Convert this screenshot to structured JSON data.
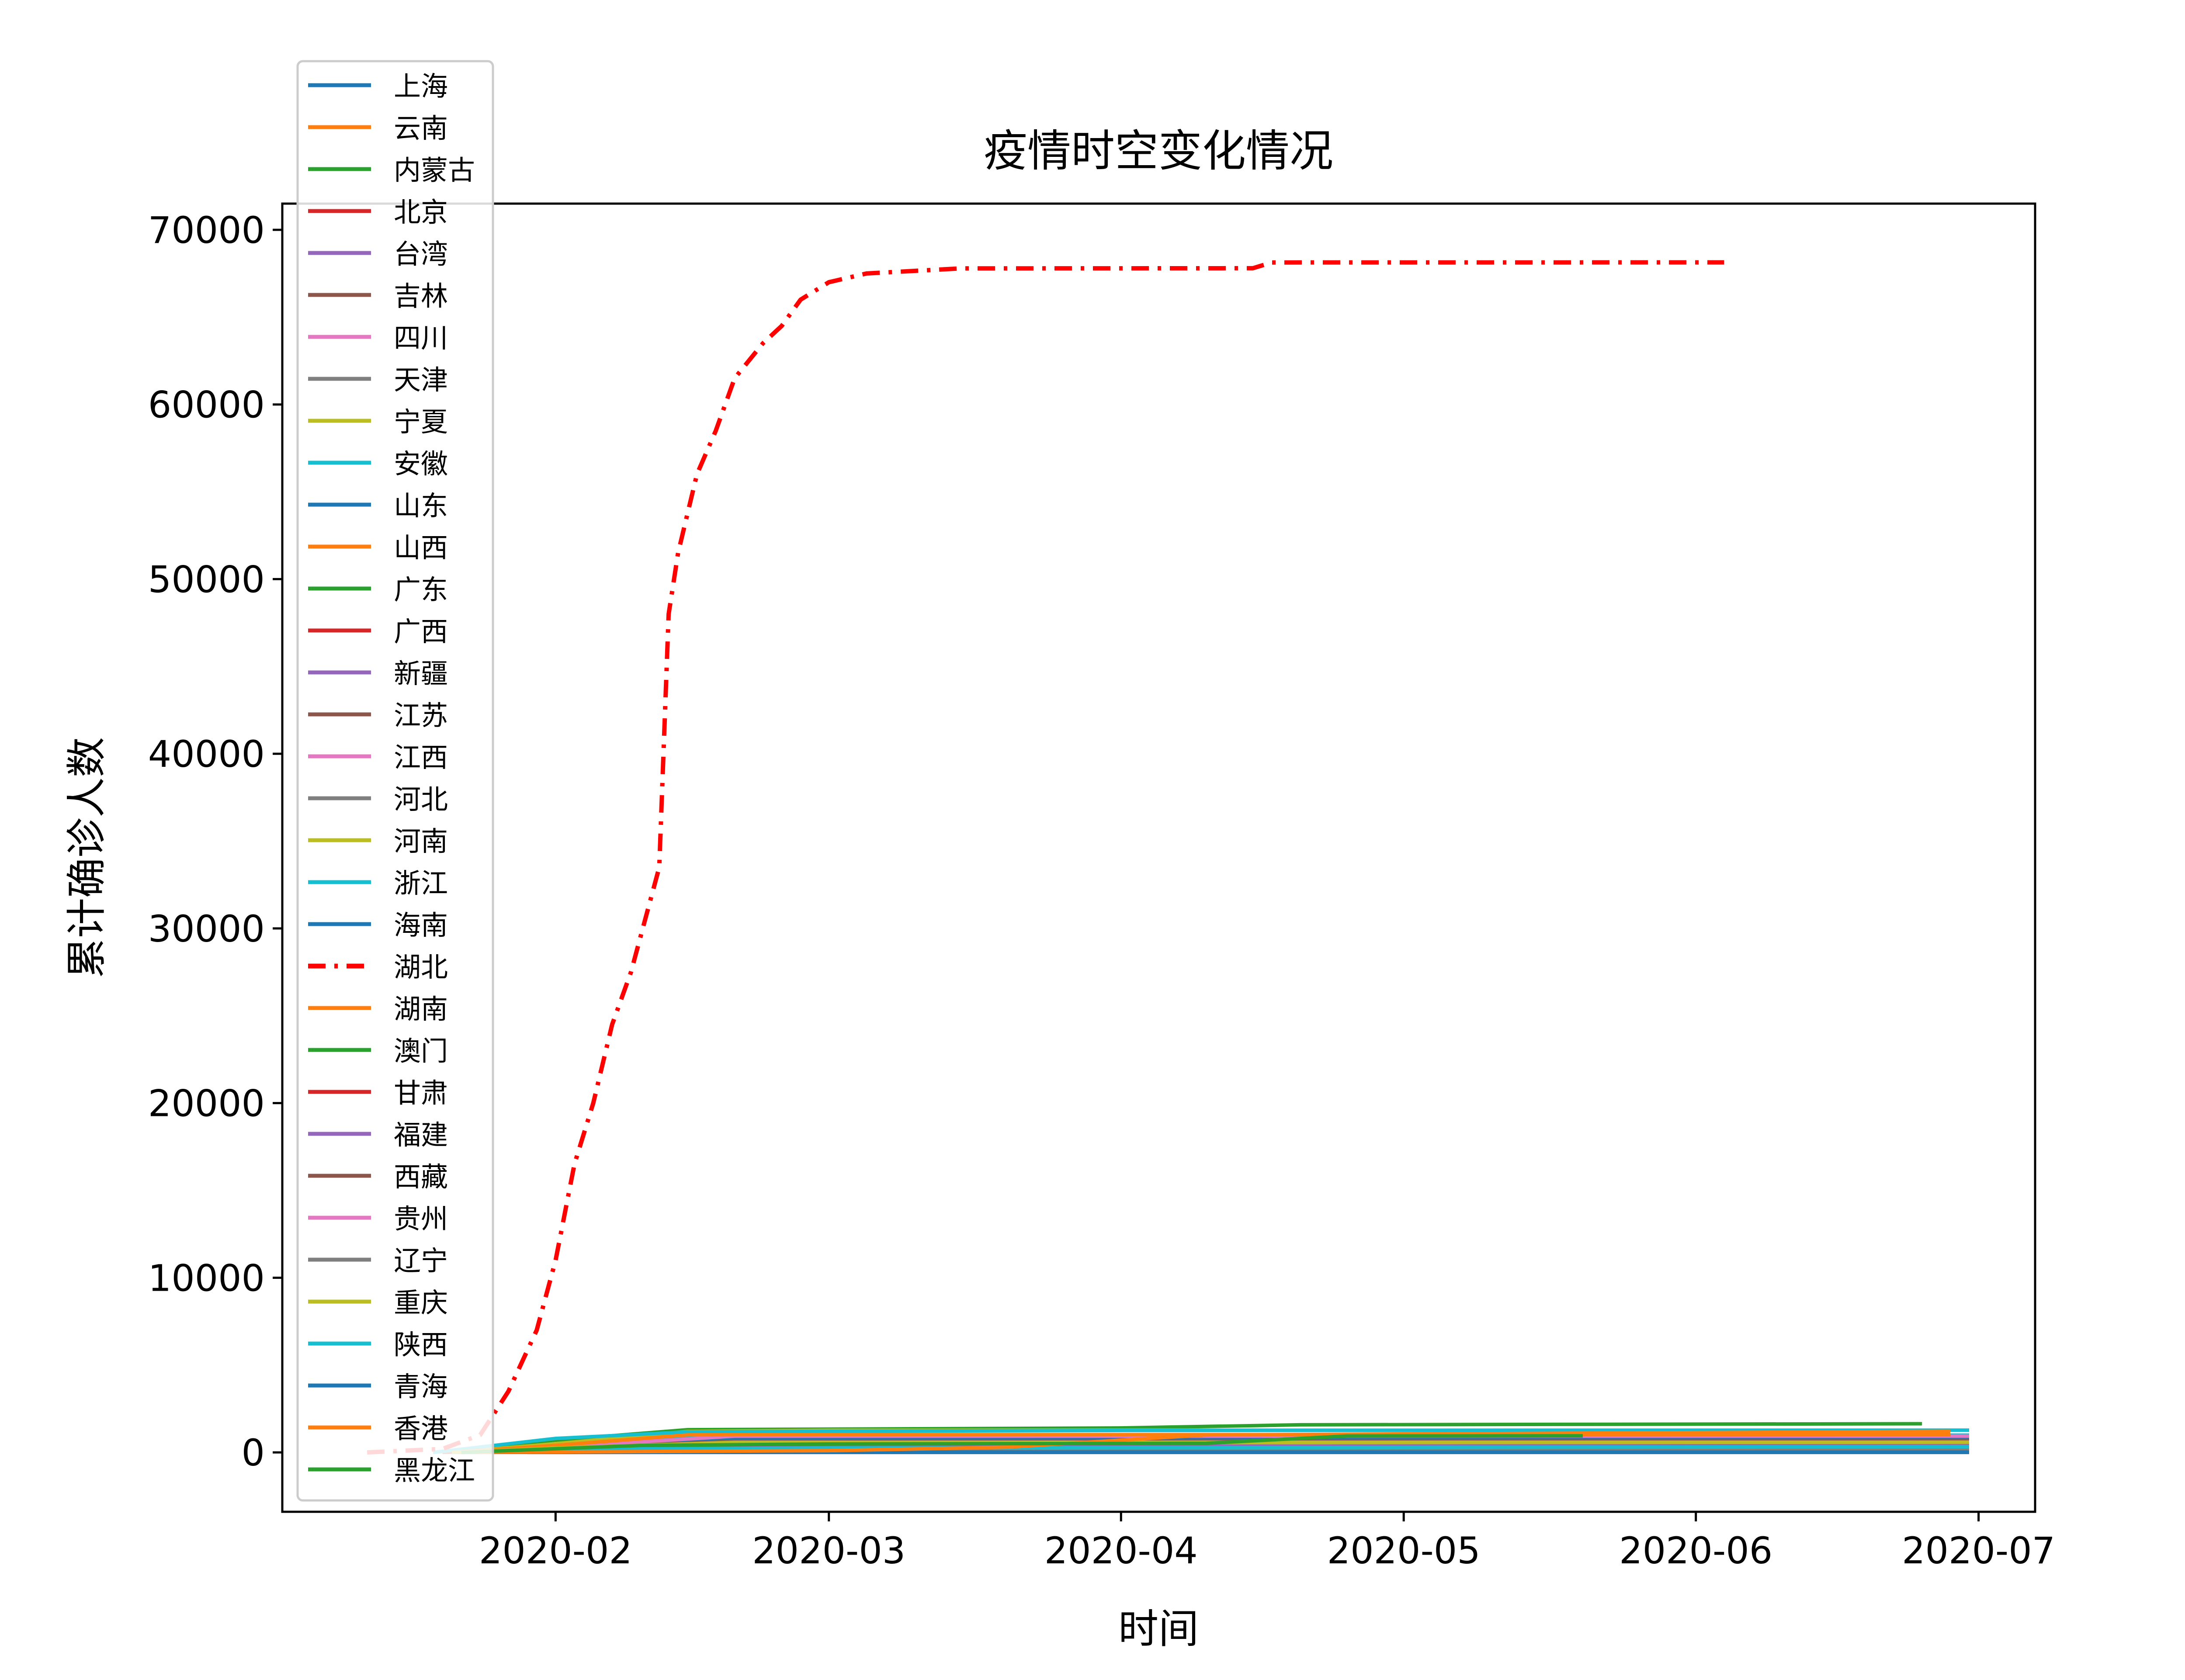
{
  "chart_data": {
    "type": "line",
    "title": "疫情时空变化情况",
    "xlabel": "时间",
    "ylabel": "累计确诊人数",
    "xlim": [
      "2020-01-03",
      "2020-07-07"
    ],
    "ylim": [
      -3400,
      71500
    ],
    "x_ticks": [
      "2020-02-01",
      "2020-03-01",
      "2020-04-01",
      "2020-05-01",
      "2020-06-01",
      "2020-07-01"
    ],
    "x_tick_labels": [
      "2020-02",
      "2020-03",
      "2020-04",
      "2020-05",
      "2020-06",
      "2020-07"
    ],
    "y_ticks": [
      0,
      10000,
      20000,
      30000,
      40000,
      50000,
      60000,
      70000
    ],
    "y_tick_labels": [
      "0",
      "10000",
      "20000",
      "30000",
      "40000",
      "50000",
      "60000",
      "70000"
    ],
    "grid": false,
    "legend_position": "top-left",
    "series": [
      {
        "name": "上海",
        "color": "#1f77b4",
        "style": "solid",
        "x": [
          "2020-01-20",
          "2020-02-01",
          "2020-02-15",
          "2020-04-01",
          "2020-04-20",
          "2020-06-30"
        ],
        "y": [
          0,
          160,
          330,
          450,
          630,
          700
        ]
      },
      {
        "name": "云南",
        "color": "#ff7f0e",
        "style": "solid",
        "x": [
          "2020-01-20",
          "2020-02-01",
          "2020-02-20",
          "2020-06-30"
        ],
        "y": [
          0,
          100,
          174,
          185
        ]
      },
      {
        "name": "内蒙古",
        "color": "#2ca02c",
        "style": "solid",
        "x": [
          "2020-01-22",
          "2020-02-01",
          "2020-03-01",
          "2020-04-15",
          "2020-06-30"
        ],
        "y": [
          0,
          30,
          75,
          200,
          240
        ]
      },
      {
        "name": "北京",
        "color": "#d62728",
        "style": "solid",
        "x": [
          "2020-01-20",
          "2020-02-01",
          "2020-02-20",
          "2020-04-01",
          "2020-06-10",
          "2020-06-20",
          "2020-06-30"
        ],
        "y": [
          0,
          190,
          400,
          580,
          600,
          850,
          930
        ]
      },
      {
        "name": "台湾",
        "color": "#9467bd",
        "style": "solid",
        "x": [
          "2020-01-21",
          "2020-03-15",
          "2020-04-15",
          "2020-06-30"
        ],
        "y": [
          0,
          60,
          400,
          447
        ]
      },
      {
        "name": "吉林",
        "color": "#8c564b",
        "style": "solid",
        "x": [
          "2020-01-22",
          "2020-02-10",
          "2020-05-10",
          "2020-05-20",
          "2020-06-30"
        ],
        "y": [
          0,
          90,
          110,
          150,
          155
        ]
      },
      {
        "name": "四川",
        "color": "#e377c2",
        "style": "solid",
        "x": [
          "2020-01-21",
          "2020-02-01",
          "2020-02-20",
          "2020-06-30"
        ],
        "y": [
          0,
          230,
          530,
          590
        ]
      },
      {
        "name": "天津",
        "color": "#7f7f7f",
        "style": "solid",
        "x": [
          "2020-01-21",
          "2020-02-10",
          "2020-03-01",
          "2020-06-30"
        ],
        "y": [
          0,
          90,
          136,
          198
        ]
      },
      {
        "name": "宁夏",
        "color": "#bcbd22",
        "style": "solid",
        "x": [
          "2020-01-22",
          "2020-02-15",
          "2020-06-30"
        ],
        "y": [
          0,
          71,
          75
        ]
      },
      {
        "name": "安徽",
        "color": "#17becf",
        "style": "solid",
        "x": [
          "2020-01-22",
          "2020-02-01",
          "2020-02-15",
          "2020-03-01",
          "2020-06-30"
        ],
        "y": [
          0,
          400,
          950,
          990,
          991
        ]
      },
      {
        "name": "山东",
        "color": "#1f77b4",
        "style": "solid",
        "x": [
          "2020-01-21",
          "2020-02-01",
          "2020-02-20",
          "2020-06-30"
        ],
        "y": [
          0,
          230,
          750,
          792
        ]
      },
      {
        "name": "山西",
        "color": "#ff7f0e",
        "style": "solid",
        "x": [
          "2020-01-22",
          "2020-02-10",
          "2020-06-30"
        ],
        "y": [
          0,
          120,
          198
        ]
      },
      {
        "name": "广东",
        "color": "#2ca02c",
        "style": "solid",
        "x": [
          "2020-01-19",
          "2020-02-01",
          "2020-02-15",
          "2020-04-01",
          "2020-04-20",
          "2020-06-25"
        ],
        "y": [
          0,
          700,
          1300,
          1400,
          1580,
          1640
        ]
      },
      {
        "name": "广西",
        "color": "#d62728",
        "style": "solid",
        "x": [
          "2020-01-22",
          "2020-02-10",
          "2020-03-01",
          "2020-06-30"
        ],
        "y": [
          0,
          200,
          252,
          254
        ]
      },
      {
        "name": "新疆",
        "color": "#9467bd",
        "style": "solid",
        "x": [
          "2020-01-23",
          "2020-02-10",
          "2020-03-01",
          "2020-06-30"
        ],
        "y": [
          0,
          50,
          76,
          76
        ]
      },
      {
        "name": "江苏",
        "color": "#8c564b",
        "style": "solid",
        "x": [
          "2020-01-22",
          "2020-02-01",
          "2020-02-20",
          "2020-06-30"
        ],
        "y": [
          0,
          250,
          631,
          653
        ]
      },
      {
        "name": "江西",
        "color": "#e377c2",
        "style": "solid",
        "x": [
          "2020-01-21",
          "2020-02-01",
          "2020-02-20",
          "2020-06-30"
        ],
        "y": [
          0,
          300,
          934,
          935
        ]
      },
      {
        "name": "河北",
        "color": "#7f7f7f",
        "style": "solid",
        "x": [
          "2020-01-22",
          "2020-02-15",
          "2020-03-01",
          "2020-06-30"
        ],
        "y": [
          0,
          250,
          318,
          349
        ]
      },
      {
        "name": "河南",
        "color": "#bcbd22",
        "style": "solid",
        "x": [
          "2020-01-21",
          "2020-02-01",
          "2020-02-15",
          "2020-03-01",
          "2020-06-30"
        ],
        "y": [
          0,
          500,
          1200,
          1272,
          1276
        ]
      },
      {
        "name": "浙江",
        "color": "#17becf",
        "style": "solid",
        "x": [
          "2020-01-19",
          "2020-02-01",
          "2020-02-15",
          "2020-03-01",
          "2020-04-01",
          "2020-06-30"
        ],
        "y": [
          0,
          800,
          1170,
          1205,
          1255,
          1268
        ]
      },
      {
        "name": "海南",
        "color": "#1f77b4",
        "style": "solid",
        "x": [
          "2020-01-22",
          "2020-02-10",
          "2020-03-01",
          "2020-06-30"
        ],
        "y": [
          0,
          140,
          168,
          171
        ]
      },
      {
        "name": "湖北",
        "color": "#ff0000",
        "style": "dashdot",
        "x": [
          "2020-01-12",
          "2020-01-20",
          "2020-01-24",
          "2020-01-27",
          "2020-01-30",
          "2020-02-01",
          "2020-02-03",
          "2020-02-05",
          "2020-02-07",
          "2020-02-09",
          "2020-02-11",
          "2020-02-12",
          "2020-02-13",
          "2020-02-14",
          "2020-02-16",
          "2020-02-18",
          "2020-02-20",
          "2020-02-23",
          "2020-02-25",
          "2020-02-27",
          "2020-03-01",
          "2020-03-05",
          "2020-03-15",
          "2020-04-15",
          "2020-04-17",
          "2020-06-04"
        ],
        "y": [
          0,
          200,
          1000,
          3500,
          7000,
          11000,
          16500,
          20000,
          24500,
          27500,
          31500,
          33500,
          48000,
          51500,
          56000,
          58500,
          61500,
          63500,
          64500,
          66000,
          67000,
          67500,
          67790,
          67800,
          68130,
          68135
        ]
      },
      {
        "name": "湖南",
        "color": "#ff7f0e",
        "style": "solid",
        "x": [
          "2020-01-21",
          "2020-02-01",
          "2020-02-15",
          "2020-03-01",
          "2020-06-28"
        ],
        "y": [
          0,
          400,
          1000,
          1018,
          1019
        ]
      },
      {
        "name": "澳门",
        "color": "#2ca02c",
        "style": "solid",
        "x": [
          "2020-01-22",
          "2020-02-10",
          "2020-03-20",
          "2020-04-10",
          "2020-05-20"
        ],
        "y": [
          0,
          10,
          15,
          45,
          45
        ]
      },
      {
        "name": "甘肃",
        "color": "#d62728",
        "style": "solid",
        "x": [
          "2020-01-23",
          "2020-02-10",
          "2020-03-10",
          "2020-06-30"
        ],
        "y": [
          0,
          90,
          130,
          151
        ]
      },
      {
        "name": "福建",
        "color": "#9467bd",
        "style": "solid",
        "x": [
          "2020-01-22",
          "2020-02-01",
          "2020-02-20",
          "2020-06-30"
        ],
        "y": [
          0,
          200,
          294,
          360
        ]
      },
      {
        "name": "西藏",
        "color": "#8c564b",
        "style": "solid",
        "x": [
          "2020-01-29",
          "2020-06-30"
        ],
        "y": [
          1,
          1
        ]
      },
      {
        "name": "贵州",
        "color": "#e377c2",
        "style": "solid",
        "x": [
          "2020-01-22",
          "2020-02-10",
          "2020-03-01",
          "2020-06-30"
        ],
        "y": [
          0,
          140,
          146,
          147
        ]
      },
      {
        "name": "辽宁",
        "color": "#7f7f7f",
        "style": "solid",
        "x": [
          "2020-01-22",
          "2020-02-10",
          "2020-03-20",
          "2020-06-30"
        ],
        "y": [
          0,
          110,
          125,
          148
        ]
      },
      {
        "name": "重庆",
        "color": "#bcbd22",
        "style": "solid",
        "x": [
          "2020-01-21",
          "2020-02-01",
          "2020-02-20",
          "2020-06-30"
        ],
        "y": [
          0,
          250,
          576,
          583
        ]
      },
      {
        "name": "陕西",
        "color": "#17becf",
        "style": "solid",
        "x": [
          "2020-01-22",
          "2020-02-10",
          "2020-03-01",
          "2020-06-30"
        ],
        "y": [
          0,
          200,
          245,
          320
        ]
      },
      {
        "name": "青海",
        "color": "#1f77b4",
        "style": "solid",
        "x": [
          "2020-01-23",
          "2020-02-10",
          "2020-06-30"
        ],
        "y": [
          0,
          18,
          18
        ]
      },
      {
        "name": "香港",
        "color": "#ff7f0e",
        "style": "solid",
        "x": [
          "2020-01-22",
          "2020-03-01",
          "2020-03-20",
          "2020-04-10",
          "2020-06-28"
        ],
        "y": [
          0,
          100,
          300,
          1000,
          1200
        ]
      },
      {
        "name": "黑龙江",
        "color": "#2ca02c",
        "style": "solid",
        "x": [
          "2020-01-22",
          "2020-02-10",
          "2020-03-01",
          "2020-04-10",
          "2020-04-25",
          "2020-05-20"
        ],
        "y": [
          0,
          400,
          480,
          520,
          940,
          950
        ]
      }
    ]
  }
}
